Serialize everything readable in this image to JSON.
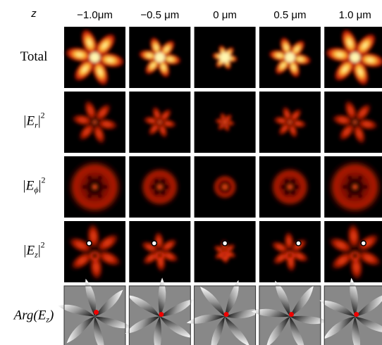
{
  "header": {
    "corner": "z",
    "columns": [
      "−1.0μm",
      "−0.5 μm",
      "0 μm",
      "0.5 μm",
      "1.0 μm"
    ]
  },
  "rows": [
    {
      "label": "Total"
    },
    {
      "prefix": "|E",
      "sub": "r",
      "suffix": "|",
      "sup": "2"
    },
    {
      "prefix": "|E",
      "sub": "ϕ",
      "suffix": "|",
      "sup": "2"
    },
    {
      "prefix": "|E",
      "sub": "z",
      "suffix": "|",
      "sup": "2"
    },
    {
      "prefix": "Arg(E",
      "sub": "z",
      "suffix": ")"
    }
  ]
}
